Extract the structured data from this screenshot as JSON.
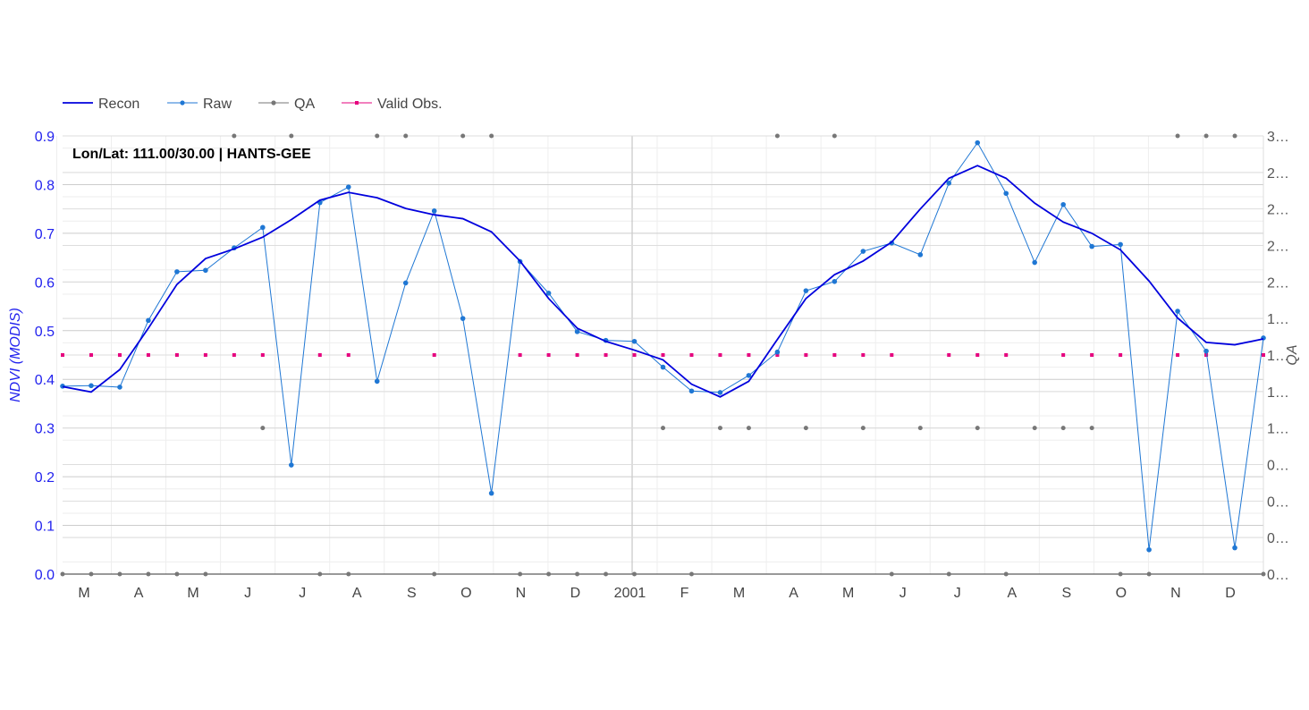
{
  "chart_data": {
    "type": "line",
    "annotation": "Lon/Lat: 111.00/30.00 | HANTS-GEE",
    "ylabel": "NDVI (MODIS)",
    "ylabel_right": "QA",
    "ylim": [
      0,
      0.9
    ],
    "y_ticks": [
      "0.0",
      "0.1",
      "0.2",
      "0.3",
      "0.4",
      "0.5",
      "0.6",
      "0.7",
      "0.8",
      "0.9"
    ],
    "y_right_ticks": [
      "0…",
      "0…",
      "0…",
      "0…",
      "1…",
      "1…",
      "1…",
      "1…",
      "2…",
      "2…",
      "2…",
      "2…",
      "3…"
    ],
    "x_ticks": [
      "M",
      "A",
      "M",
      "J",
      "J",
      "A",
      "S",
      "O",
      "N",
      "D",
      "2001",
      "F",
      "M",
      "A",
      "M",
      "J",
      "J",
      "A",
      "S",
      "O",
      "N",
      "D"
    ],
    "legend_position": "top-left",
    "legend": [
      {
        "name": "Recon",
        "color": "#0000dd",
        "style": "line"
      },
      {
        "name": "Raw",
        "color": "#1f77d4",
        "style": "line-dot"
      },
      {
        "name": "QA",
        "color": "#777777",
        "style": "line-dot"
      },
      {
        "name": "Valid Obs.",
        "color": "#e6007e",
        "style": "line-square"
      }
    ],
    "series": [
      {
        "name": "Recon",
        "color": "#0000dd",
        "values": [
          0.385,
          0.374,
          0.42,
          0.505,
          0.595,
          0.648,
          0.668,
          0.692,
          0.728,
          0.768,
          0.784,
          0.773,
          0.751,
          0.738,
          0.73,
          0.703,
          0.643,
          0.566,
          0.505,
          0.478,
          0.46,
          0.44,
          0.39,
          0.364,
          0.396,
          0.482,
          0.566,
          0.615,
          0.643,
          0.682,
          0.75,
          0.813,
          0.839,
          0.813,
          0.762,
          0.723,
          0.7,
          0.666,
          0.602,
          0.526,
          0.476,
          0.471,
          0.483
        ]
      },
      {
        "name": "Raw",
        "color": "#1f77d4",
        "values": [
          0.386,
          0.387,
          0.384,
          0.521,
          0.621,
          0.624,
          0.67,
          0.712,
          0.224,
          0.763,
          0.795,
          0.396,
          0.598,
          0.746,
          0.525,
          0.166,
          0.642,
          0.577,
          0.498,
          0.48,
          0.478,
          0.425,
          0.376,
          0.373,
          0.408,
          0.456,
          0.582,
          0.601,
          0.663,
          0.68,
          0.656,
          0.803,
          0.886,
          0.782,
          0.64,
          0.759,
          0.673,
          0.677,
          0.05,
          0.54,
          0.458,
          0.054,
          0.485
        ]
      },
      {
        "name": "QA",
        "color": "#777777",
        "values": [
          0,
          0,
          0,
          0,
          0,
          0,
          3,
          1,
          3,
          0,
          0,
          3,
          3,
          0,
          3,
          3,
          0,
          0,
          0,
          0,
          0,
          1,
          0,
          1,
          1,
          3,
          1,
          3,
          1,
          0,
          1,
          0,
          1,
          0,
          1,
          1,
          1,
          0,
          0,
          3,
          3,
          3,
          0
        ]
      },
      {
        "name": "Valid Obs.",
        "color": "#e6007e",
        "values": [
          0.45,
          0.45,
          0.45,
          0.45,
          0.45,
          0.45,
          0.45,
          0.45,
          null,
          0.45,
          0.45,
          null,
          null,
          0.45,
          null,
          null,
          0.45,
          0.45,
          0.45,
          0.45,
          0.45,
          0.45,
          0.45,
          0.45,
          0.45,
          0.45,
          0.45,
          0.45,
          0.45,
          0.45,
          null,
          0.45,
          0.45,
          0.45,
          null,
          0.45,
          0.45,
          0.45,
          null,
          0.45,
          0.45,
          null,
          0.45
        ]
      }
    ]
  }
}
